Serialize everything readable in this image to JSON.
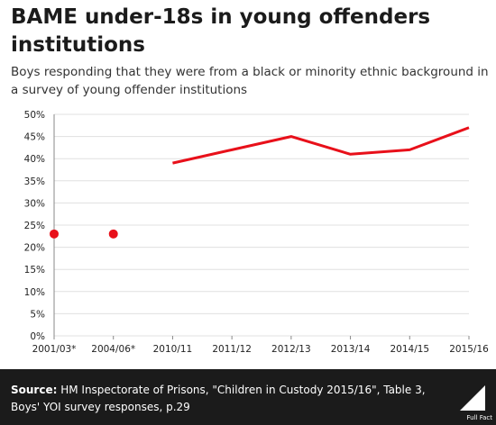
{
  "title": "BAME under-18s in young offenders institutions",
  "subtitle": "Boys responding that they were from a black or minority ethnic background in a survey of young offender institutions",
  "chart_data": {
    "type": "line",
    "title": "BAME under-18s in young offenders institutions",
    "categories": [
      "2001/03*",
      "2004/06*",
      "2010/11",
      "2011/12",
      "2012/13",
      "2013/14",
      "2014/15",
      "2015/16"
    ],
    "series": [
      {
        "values": [
          23,
          23,
          null,
          null,
          null,
          null,
          null,
          null
        ],
        "style": "points"
      },
      {
        "values": [
          null,
          null,
          39,
          42,
          45,
          41,
          42,
          47
        ],
        "style": "line"
      }
    ],
    "y_ticks": [
      "0%",
      "5%",
      "10%",
      "15%",
      "20%",
      "25%",
      "30%",
      "35%",
      "40%",
      "45%",
      "50%"
    ],
    "ylim": [
      0,
      50
    ],
    "grid": true,
    "color": "#e8101a"
  },
  "footer": {
    "source_label": "Source:",
    "source_text": " HM Inspectorate of Prisons, \"Children in Custody 2015/16\", Table 3, Boys' YOI survey responses, p.29",
    "logo_text": "Full Fact"
  }
}
